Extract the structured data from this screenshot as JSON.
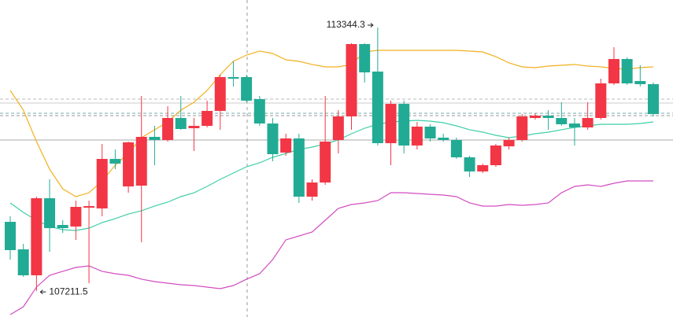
{
  "chart_data": {
    "type": "candlestick",
    "ylim": [
      106610,
      113985
    ],
    "up_color": "#22ab94",
    "down_color": "#f23645",
    "open": [
      108166,
      107580,
      109373,
      108678,
      108678,
      109172,
      109190,
      110288,
      110179,
      110673,
      110801,
      110728,
      111240,
      110984,
      111057,
      111405,
      112192,
      112155,
      111643,
      111112,
      110398,
      110764,
      109410,
      109739,
      110691,
      111277,
      112960,
      112301,
      110654,
      111569,
      110600,
      111039,
      110764,
      110728,
      110325,
      109996,
      110142,
      110600,
      110728,
      111277,
      111295,
      111240,
      111094,
      111020,
      111240,
      112045,
      112612,
      112045,
      112027,
      111331
    ],
    "high": [
      108952,
      108312,
      109410,
      109813,
      108861,
      109318,
      109318,
      110636,
      110508,
      110691,
      111752,
      111057,
      111514,
      111752,
      111240,
      111643,
      112246,
      112558,
      112246,
      111752,
      111240,
      110874,
      110874,
      109813,
      111752,
      111423,
      112979,
      112979,
      113344.3,
      111643,
      111643,
      111148,
      111094,
      110874,
      110782,
      110362,
      110179,
      110636,
      110782,
      111331,
      111350,
      111423,
      111606,
      111240,
      111606,
      112155,
      112887,
      112649,
      112466,
      112063
    ],
    "low": [
      107946,
      107543,
      107211.5,
      108129,
      108568,
      108403,
      107397,
      108952,
      110050,
      109501,
      108349,
      110142,
      110691,
      110966,
      110471,
      111020,
      110966,
      111972,
      111606,
      111057,
      110233,
      110362,
      109264,
      109318,
      109684,
      110416,
      110966,
      112063,
      110600,
      110142,
      110416,
      110508,
      110691,
      110691,
      110288,
      109867,
      109959,
      110105,
      110508,
      110691,
      111203,
      110966,
      111057,
      110600,
      110966,
      111203,
      112009,
      112009,
      111972,
      111277
    ],
    "close": [
      108824,
      108184,
      107580,
      109373,
      108751,
      108715,
      109154,
      109136,
      110288,
      109648,
      109666,
      110801,
      110728,
      111240,
      111002,
      111057,
      111405,
      112192,
      112192,
      111679,
      111112,
      110435,
      110764,
      109410,
      109739,
      110728,
      111277,
      112960,
      112320,
      110654,
      111569,
      110600,
      111039,
      110782,
      110728,
      110325,
      109996,
      110142,
      110581,
      110728,
      111240,
      111295,
      111240,
      111112,
      111020,
      111240,
      112045,
      112612,
      112100,
      112027
    ],
    "bands": [
      {
        "color": "#f2b01e",
        "values": [
          111881,
          111423,
          110691,
          110050,
          109593,
          109410,
          109501,
          109776,
          110142,
          110416,
          110783,
          110966,
          111149,
          111423,
          111606,
          111881,
          112247,
          112558,
          112704,
          112796,
          112741,
          112594,
          112558,
          112485,
          112430,
          112430,
          112485,
          112777,
          112814,
          112814,
          112814,
          112814,
          112814,
          112814,
          112814,
          112796,
          112777,
          112667,
          112521,
          112430,
          112411,
          112448,
          112466,
          112485,
          112448,
          112430,
          112393,
          112375,
          112411,
          112430
        ]
      },
      {
        "color": "#3fcfa8",
        "values": [
          109264,
          109044,
          108861,
          108715,
          108641,
          108623,
          108678,
          108806,
          108898,
          109007,
          109081,
          109191,
          109282,
          109410,
          109501,
          109648,
          109813,
          109959,
          110105,
          110197,
          110325,
          110416,
          110508,
          110563,
          110636,
          110728,
          110874,
          111002,
          111094,
          111149,
          111167,
          111185,
          111167,
          111130,
          111057,
          110966,
          110911,
          110837,
          110783,
          110819,
          110874,
          110911,
          110966,
          111020,
          111057,
          111094,
          111094,
          111094,
          111112,
          111149
        ]
      },
      {
        "color": "#d24cc1",
        "values": [
          106665,
          106848,
          107306,
          107580,
          107672,
          107763,
          107800,
          107672,
          107617,
          107580,
          107489,
          107434,
          107397,
          107360,
          107342,
          107306,
          107269,
          107342,
          107489,
          107617,
          107946,
          108404,
          108495,
          108587,
          108861,
          109136,
          109227,
          109264,
          109319,
          109501,
          109501,
          109483,
          109465,
          109446,
          109410,
          109264,
          109191,
          109191,
          109227,
          109209,
          109227,
          109264,
          109501,
          109648,
          109685,
          109648,
          109721,
          109776,
          109776,
          109776
        ]
      }
    ],
    "price_lines": [
      111679,
      111588,
      111350,
      111295,
      110728
    ]
  }
}
